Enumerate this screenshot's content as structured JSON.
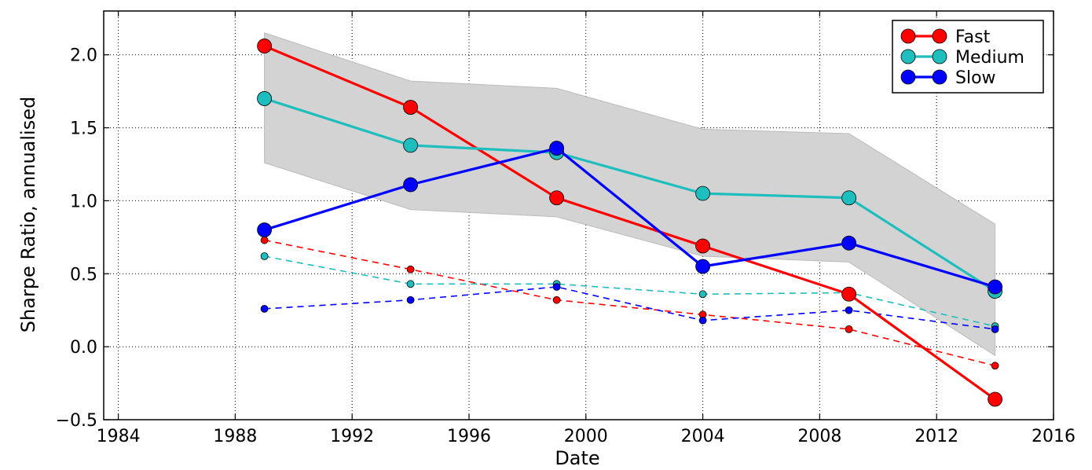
{
  "chart_data": {
    "type": "line",
    "title": "",
    "xlabel": "Date",
    "ylabel": "Sharpe Ratio, annualised",
    "xlim": [
      1983.5,
      2016
    ],
    "ylim": [
      -0.5,
      2.3
    ],
    "x_ticks": [
      1984,
      1988,
      1992,
      1996,
      2000,
      2004,
      2008,
      2012,
      2016
    ],
    "y_ticks": [
      -0.5,
      0.0,
      0.5,
      1.0,
      1.5,
      2.0
    ],
    "y_tick_labels": [
      "−0.5",
      "0.0",
      "0.5",
      "1.0",
      "1.5",
      "2.0"
    ],
    "grid": true,
    "legend_position": "top-right",
    "x": [
      1989,
      1994,
      1999,
      2004,
      2009,
      2014
    ],
    "band": {
      "color": "#d3d3d3",
      "upper": [
        2.15,
        1.82,
        1.77,
        1.49,
        1.46,
        0.84
      ],
      "lower": [
        1.26,
        0.94,
        0.89,
        0.62,
        0.58,
        -0.06
      ]
    },
    "series": [
      {
        "name": "Fast",
        "color": "#ff0000",
        "values": [
          2.06,
          1.64,
          1.02,
          0.69,
          0.36,
          -0.36
        ]
      },
      {
        "name": "Medium",
        "color": "#1ebebe",
        "values": [
          1.7,
          1.38,
          1.33,
          1.05,
          1.02,
          0.38
        ]
      },
      {
        "name": "Slow",
        "color": "#0000ff",
        "values": [
          0.8,
          1.11,
          1.36,
          0.55,
          0.71,
          0.41
        ]
      }
    ],
    "dashed_series": [
      {
        "color": "#ff0000",
        "values": [
          0.73,
          0.53,
          0.32,
          0.22,
          0.12,
          -0.13
        ]
      },
      {
        "color": "#1ebebe",
        "values": [
          0.62,
          0.43,
          0.43,
          0.36,
          0.37,
          0.14
        ]
      },
      {
        "color": "#0000ff",
        "values": [
          0.26,
          0.32,
          0.41,
          0.18,
          0.25,
          0.12
        ]
      }
    ]
  }
}
